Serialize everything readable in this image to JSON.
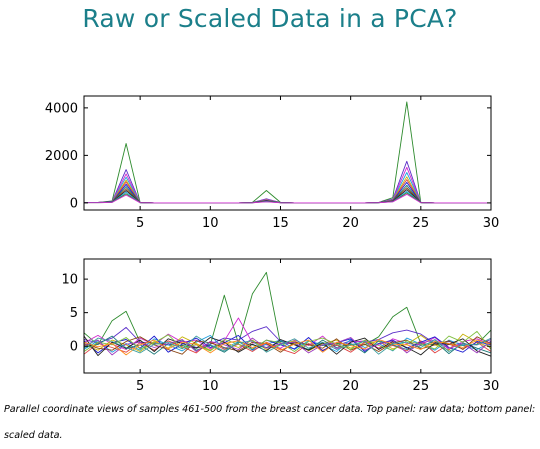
{
  "slide": {
    "title": "Raw or Scaled Data in a PCA?",
    "caption": "Parallel coordinate views of samples 461-500 from the breast cancer data. Top panel: raw data; bottom panel: scaled data."
  },
  "chart_data": [
    {
      "type": "line",
      "panel": "top",
      "xlim": [
        1,
        30
      ],
      "ylim": [
        -300,
        4500
      ],
      "xticks": [
        5,
        10,
        15,
        20,
        25,
        30
      ],
      "yticks": [
        0,
        2000,
        4000
      ],
      "xlabel": "",
      "ylabel": "",
      "grid": false,
      "legend": "none",
      "series": [
        {
          "color": "#2e8b2e",
          "values": [
            20,
            20,
            80,
            2500,
            20,
            0,
            0,
            0,
            0,
            0,
            0,
            0,
            20,
            520,
            20,
            0,
            0,
            0,
            0,
            0,
            0,
            20,
            220,
            4250,
            20,
            0,
            0,
            0,
            0,
            0
          ]
        },
        {
          "color": "#5b2fc9",
          "values": [
            20,
            20,
            60,
            1400,
            15,
            0,
            0,
            0,
            0,
            0,
            0,
            0,
            15,
            170,
            15,
            0,
            0,
            0,
            0,
            0,
            0,
            15,
            160,
            1750,
            15,
            0,
            0,
            0,
            0,
            0
          ]
        },
        {
          "color": "#d02ad0",
          "values": [
            18,
            18,
            55,
            1220,
            15,
            0,
            0,
            0,
            0,
            0,
            0,
            0,
            12,
            150,
            12,
            0,
            0,
            0,
            0,
            0,
            0,
            14,
            140,
            1500,
            15,
            0,
            0,
            0,
            0,
            0
          ]
        },
        {
          "color": "#1f9fdf",
          "values": [
            17,
            17,
            50,
            1080,
            14,
            0,
            0,
            0,
            0,
            0,
            0,
            0,
            12,
            130,
            12,
            0,
            0,
            0,
            0,
            0,
            0,
            13,
            125,
            1280,
            14,
            0,
            0,
            0,
            0,
            0
          ]
        },
        {
          "color": "#c9b20a",
          "values": [
            16,
            16,
            45,
            960,
            13,
            0,
            0,
            0,
            0,
            0,
            0,
            0,
            11,
            120,
            11,
            0,
            0,
            0,
            0,
            0,
            0,
            12,
            115,
            1100,
            13,
            0,
            0,
            0,
            0,
            0
          ]
        },
        {
          "color": "#e04545",
          "values": [
            15,
            15,
            40,
            880,
            12,
            0,
            0,
            0,
            0,
            0,
            0,
            0,
            10,
            110,
            10,
            0,
            0,
            0,
            0,
            0,
            0,
            12,
            105,
            980,
            12,
            0,
            0,
            0,
            0,
            0
          ]
        },
        {
          "color": "#1b1bd1",
          "values": [
            14,
            14,
            38,
            780,
            12,
            0,
            0,
            0,
            0,
            0,
            0,
            0,
            10,
            100,
            10,
            0,
            0,
            0,
            0,
            0,
            0,
            11,
            95,
            860,
            12,
            0,
            0,
            0,
            0,
            0
          ]
        },
        {
          "color": "#1d7a7a",
          "values": [
            13,
            13,
            35,
            690,
            11,
            0,
            0,
            0,
            0,
            0,
            0,
            0,
            9,
            90,
            9,
            0,
            0,
            0,
            0,
            0,
            0,
            10,
            85,
            740,
            11,
            0,
            0,
            0,
            0,
            0
          ]
        },
        {
          "color": "#8b4513",
          "values": [
            12,
            12,
            30,
            600,
            10,
            0,
            0,
            0,
            0,
            0,
            0,
            0,
            8,
            80,
            8,
            0,
            0,
            0,
            0,
            0,
            0,
            9,
            75,
            640,
            10,
            0,
            0,
            0,
            0,
            0
          ]
        },
        {
          "color": "#222222",
          "values": [
            11,
            11,
            28,
            520,
            9,
            0,
            0,
            0,
            0,
            0,
            0,
            0,
            7,
            70,
            7,
            0,
            0,
            0,
            0,
            0,
            0,
            8,
            65,
            560,
            9,
            0,
            0,
            0,
            0,
            0
          ]
        },
        {
          "color": "#1f9fdf",
          "values": [
            10,
            10,
            25,
            450,
            8,
            0,
            0,
            0,
            0,
            0,
            0,
            0,
            6,
            60,
            6,
            0,
            0,
            0,
            0,
            0,
            0,
            7,
            55,
            480,
            8,
            0,
            0,
            0,
            0,
            0
          ]
        },
        {
          "color": "#2e8b2e",
          "values": [
            9,
            9,
            22,
            380,
            8,
            0,
            0,
            0,
            0,
            0,
            0,
            0,
            6,
            50,
            6,
            0,
            0,
            0,
            0,
            0,
            0,
            6,
            50,
            420,
            8,
            0,
            0,
            0,
            0,
            0
          ]
        },
        {
          "color": "#d02ad0",
          "values": [
            8,
            8,
            20,
            330,
            7,
            0,
            0,
            0,
            0,
            0,
            0,
            0,
            5,
            45,
            5,
            0,
            0,
            0,
            0,
            0,
            0,
            6,
            45,
            360,
            7,
            0,
            0,
            0,
            0,
            0
          ]
        }
      ]
    },
    {
      "type": "line",
      "panel": "bottom",
      "xlim": [
        1,
        30
      ],
      "ylim": [
        -4,
        13
      ],
      "xticks": [
        5,
        10,
        15,
        20,
        25,
        30
      ],
      "yticks": [
        0,
        5,
        10
      ],
      "xlabel": "",
      "ylabel": "",
      "grid": false,
      "legend": "none",
      "series": [
        {
          "color": "#2e8b2e",
          "values": [
            2.0,
            0.2,
            3.8,
            5.2,
            0.6,
            0.4,
            0.2,
            0.1,
            -0.3,
            0.2,
            7.6,
            0.4,
            7.8,
            11.0,
            0.3,
            0.5,
            0.2,
            0.1,
            0.4,
            0.3,
            0.2,
            1.4,
            4.4,
            5.8,
            0.4,
            0.2,
            0.3,
            0.1,
            0.3,
            2.4
          ]
        },
        {
          "color": "#5b2fc9",
          "values": [
            1.0,
            0.5,
            1.2,
            2.8,
            0.6,
            0.5,
            0.2,
            0.7,
            -0.2,
            0.3,
            1.2,
            0.9,
            2.2,
            2.9,
            0.7,
            0.6,
            0.3,
            0.5,
            0.1,
            0.8,
            0.6,
            1.0,
            2.0,
            2.4,
            1.8,
            0.4,
            0.7,
            0.3,
            0.2,
            1.0
          ]
        },
        {
          "color": "#d02ad0",
          "values": [
            0.5,
            1.6,
            0.3,
            -0.5,
            1.2,
            0.2,
            1.8,
            0.6,
            0.9,
            -0.4,
            0.8,
            4.2,
            0.5,
            0.2,
            -0.3,
            0.9,
            0.1,
            1.5,
            -0.4,
            0.6,
            0.8,
            -0.3,
            1.1,
            0.4,
            0.2,
            1.3,
            -0.5,
            0.7,
            1.1,
            0.3
          ]
        },
        {
          "color": "#1f9fdf",
          "values": [
            -0.5,
            0.8,
            -0.9,
            0.4,
            -0.6,
            1.1,
            0.2,
            -0.7,
            0.6,
            1.6,
            -0.4,
            0.7,
            -0.6,
            0.3,
            0.9,
            -0.5,
            0.8,
            0.2,
            -0.8,
            1.0,
            -0.2,
            0.4,
            -0.7,
            1.2,
            0.3,
            -0.6,
            0.9,
            0.1,
            -0.5,
            0.6
          ]
        },
        {
          "color": "#c9b20a",
          "values": [
            0.3,
            -0.6,
            0.9,
            0.2,
            -0.8,
            0.7,
            -0.3,
            1.4,
            0.4,
            -0.6,
            0.6,
            -0.2,
            0.9,
            -0.5,
            0.3,
            0.8,
            -0.7,
            0.4,
            0.9,
            -0.3,
            0.5,
            0.7,
            -0.4,
            0.3,
            1.6,
            0.2,
            -0.6,
            1.8,
            0.6,
            -0.2
          ]
        },
        {
          "color": "#e04545",
          "values": [
            -1.2,
            0.4,
            -0.2,
            -0.9,
            0.5,
            -0.6,
            0.8,
            -0.1,
            -1.0,
            0.7,
            -0.5,
            0.3,
            -0.8,
            0.6,
            -0.4,
            -1.1,
            0.4,
            -0.6,
            0.2,
            -0.9,
            0.6,
            -0.3,
            0.1,
            -0.7,
            0.8,
            -1.0,
            0.3,
            -0.4,
            0.6,
            -0.8
          ]
        },
        {
          "color": "#1b1bd1",
          "values": [
            0.8,
            -1.0,
            0.5,
            1.0,
            -0.3,
            1.5,
            -0.9,
            0.3,
            1.2,
            -0.2,
            0.5,
            1.6,
            -0.5,
            0.9,
            0.2,
            -0.4,
            1.3,
            -0.7,
            0.5,
            1.1,
            -0.8,
            0.4,
            0.9,
            -0.3,
            0.6,
            1.4,
            -0.2,
            -0.9,
            0.7,
            0.2
          ]
        },
        {
          "color": "#1d7a7a",
          "values": [
            -0.2,
            0.3,
            1.5,
            -0.4,
            0.2,
            -1.2,
            0.4,
            0.9,
            -0.6,
            0.1,
            -0.9,
            0.6,
            0.2,
            -0.2,
            0.7,
            0.3,
            -0.5,
            0.9,
            -0.2,
            0.4,
            -1.0,
            0.8,
            0.2,
            -0.5,
            0.1,
            0.7,
            -1.1,
            0.5,
            -0.3,
            -1.0
          ]
        },
        {
          "color": "#8b4513",
          "values": [
            0.4,
            -0.3,
            -0.6,
            0.7,
            1.4,
            0.2,
            -0.5,
            -1.2,
            0.8,
            0.5,
            -0.2,
            -0.7,
            0.6,
            0.4,
            -0.9,
            0.6,
            0.2,
            -0.3,
            1.1,
            -0.6,
            0.3,
            -0.8,
            0.5,
            0.9,
            -0.4,
            0.2,
            0.8,
            -0.5,
            1.4,
            0.4
          ]
        },
        {
          "color": "#222222",
          "values": [
            1.5,
            -1.4,
            0.6,
            -0.3,
            0.9,
            -0.8,
            1.1,
            0.4,
            -0.3,
            1.3,
            0.6,
            -0.9,
            0.3,
            -0.7,
            1.0,
            0.2,
            -0.6,
            0.5,
            -1.2,
            0.6,
            1.2,
            -0.5,
            0.7,
            -0.2,
            -1.3,
            0.5,
            0.3,
            1.1,
            -0.7,
            -1.5
          ]
        },
        {
          "color": "#7fbf3f",
          "values": [
            -0.8,
            0.6,
            0.2,
            1.3,
            -0.4,
            0.5,
            1.7,
            -0.3,
            0.2,
            -0.7,
            1.0,
            0.3,
            -0.4,
            0.9,
            0.5,
            -0.8,
            0.7,
            1.2,
            0.3,
            -0.5,
            0.9,
            0.1,
            -0.6,
            0.8,
            0.3,
            -0.4,
            1.5,
            0.6,
            2.2,
            -0.5
          ]
        },
        {
          "color": "#9e3bbf",
          "values": [
            0.1,
            0.9,
            -1.3,
            0.3,
            0.6,
            -0.2,
            0.4,
            1.0,
            -0.8,
            0.7,
            0.2,
            -0.5,
            1.2,
            -0.3,
            0.4,
            0.6,
            -1.0,
            0.2,
            0.5,
            1.3,
            -0.6,
            0.3,
            0.8,
            -1.0,
            0.5,
            0.9,
            -0.3,
            0.4,
            -1.0,
            0.8
          ]
        },
        {
          "color": "#ff8c1a",
          "values": [
            0.6,
            -0.1,
            0.4,
            -1.3,
            0.2,
            0.9,
            -0.4,
            0.6,
            0.3,
            -1.0,
            0.4,
            0.8,
            -0.2,
            0.5,
            -0.6,
            0.3,
            0.9,
            -0.9,
            0.6,
            0.1,
            -0.4,
            1.0,
            0.3,
            0.2,
            -0.5,
            0.7,
            0.4,
            -0.2,
            0.9,
            0.3
          ]
        },
        {
          "color": "#3fa0a0",
          "values": [
            -0.3,
            1.2,
            0.7,
            -0.2,
            -1.0,
            0.3,
            0.6,
            -0.4,
            1.5,
            0.2,
            -0.7,
            0.5,
            0.8,
            -0.9,
            0.2,
            1.1,
            -0.3,
            0.6,
            -0.5,
            0.2,
            0.7,
            -1.2,
            0.4,
            0.6,
            -0.2,
            1.0,
            -0.8,
            0.3,
            0.2,
            1.2
          ]
        }
      ]
    }
  ]
}
